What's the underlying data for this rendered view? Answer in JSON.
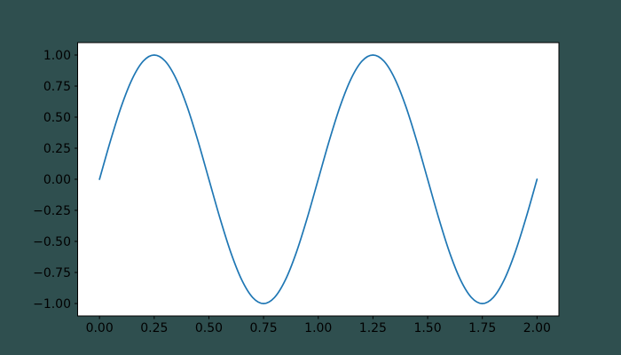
{
  "colors": {
    "figure_bg": "#2f4f4f",
    "axes_bg": "#ffffff",
    "spine": "#000000",
    "tick_label": "#000000",
    "line": "#1f77b4"
  },
  "chart_data": {
    "type": "line",
    "title": "",
    "xlabel": "",
    "ylabel": "",
    "grid": false,
    "legend": null,
    "xlim": [
      0,
      2
    ],
    "ylim": [
      -1,
      1
    ],
    "xticks": [
      0,
      0.25,
      0.5,
      0.75,
      1,
      1.25,
      1.5,
      1.75,
      2
    ],
    "xtick_labels": [
      "0.00",
      "0.25",
      "0.50",
      "0.75",
      "1.00",
      "1.25",
      "1.50",
      "1.75",
      "2.00"
    ],
    "yticks": [
      -1,
      -0.75,
      -0.5,
      -0.25,
      0,
      0.25,
      0.5,
      0.75,
      1
    ],
    "ytick_labels": [
      "−1.00",
      "−0.75",
      "−0.50",
      "−0.25",
      "0.00",
      "0.25",
      "0.50",
      "0.75",
      "1.00"
    ],
    "x": [
      0.0,
      0.05,
      0.1,
      0.15,
      0.2,
      0.25,
      0.3,
      0.35,
      0.4,
      0.45,
      0.5,
      0.55,
      0.6,
      0.65,
      0.7,
      0.75,
      0.8,
      0.85,
      0.9,
      0.95,
      1.0,
      1.05,
      1.1,
      1.15,
      1.2,
      1.25,
      1.3,
      1.35,
      1.4,
      1.45,
      1.5,
      1.55,
      1.6,
      1.65,
      1.7,
      1.75,
      1.8,
      1.85,
      1.9,
      1.95,
      2.0
    ],
    "y": [
      0,
      0.309,
      0.5878,
      0.809,
      0.9511,
      1,
      0.9511,
      0.809,
      0.5878,
      0.309,
      0,
      -0.309,
      -0.5878,
      -0.809,
      -0.9511,
      -1,
      -0.9511,
      -0.809,
      -0.5878,
      -0.309,
      0,
      0.309,
      0.5878,
      0.809,
      0.9511,
      1,
      0.9511,
      0.809,
      0.5878,
      0.309,
      0,
      -0.309,
      -0.5878,
      -0.809,
      -0.9511,
      -1,
      -0.9511,
      -0.809,
      -0.5878,
      -0.309,
      0
    ]
  }
}
